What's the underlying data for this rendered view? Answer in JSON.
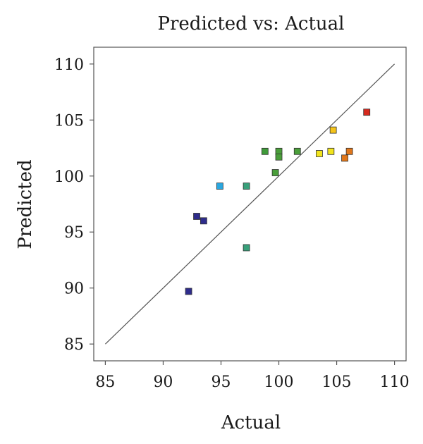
{
  "chart_data": {
    "type": "scatter",
    "title": "Predicted vs: Actual",
    "xlabel": "Actual",
    "ylabel": "Predicted",
    "xlim": [
      84,
      111
    ],
    "ylim": [
      83.5,
      111.5
    ],
    "xticks": [
      "85",
      "90",
      "95",
      "100",
      "105",
      "110"
    ],
    "yticks": [
      "85",
      "90",
      "95",
      "100",
      "105",
      "110"
    ],
    "grid": false,
    "reference_line": {
      "from": [
        85,
        85
      ],
      "to": [
        110,
        110
      ]
    },
    "points": [
      {
        "x": 92.2,
        "y": 89.7,
        "color": "#2e2c8c"
      },
      {
        "x": 92.9,
        "y": 96.4,
        "color": "#2e2c8c"
      },
      {
        "x": 93.5,
        "y": 96.0,
        "color": "#2e2c8c"
      },
      {
        "x": 94.9,
        "y": 99.1,
        "color": "#2aa7e0"
      },
      {
        "x": 97.2,
        "y": 93.6,
        "color": "#38a07a"
      },
      {
        "x": 97.2,
        "y": 99.1,
        "color": "#38a07a"
      },
      {
        "x": 98.8,
        "y": 102.2,
        "color": "#3f9a3a"
      },
      {
        "x": 99.7,
        "y": 100.3,
        "color": "#4a9e3a"
      },
      {
        "x": 100.0,
        "y": 102.2,
        "color": "#4a9e3a"
      },
      {
        "x": 100.0,
        "y": 101.7,
        "color": "#4a9e3a"
      },
      {
        "x": 101.6,
        "y": 102.2,
        "color": "#4a9e3a"
      },
      {
        "x": 103.5,
        "y": 102.0,
        "color": "#f2e41c"
      },
      {
        "x": 104.5,
        "y": 102.2,
        "color": "#f2e41c"
      },
      {
        "x": 104.7,
        "y": 104.1,
        "color": "#f4c31a"
      },
      {
        "x": 105.7,
        "y": 101.6,
        "color": "#e0761a"
      },
      {
        "x": 106.1,
        "y": 102.2,
        "color": "#e0761a"
      },
      {
        "x": 107.6,
        "y": 105.7,
        "color": "#d62a1e"
      }
    ]
  }
}
